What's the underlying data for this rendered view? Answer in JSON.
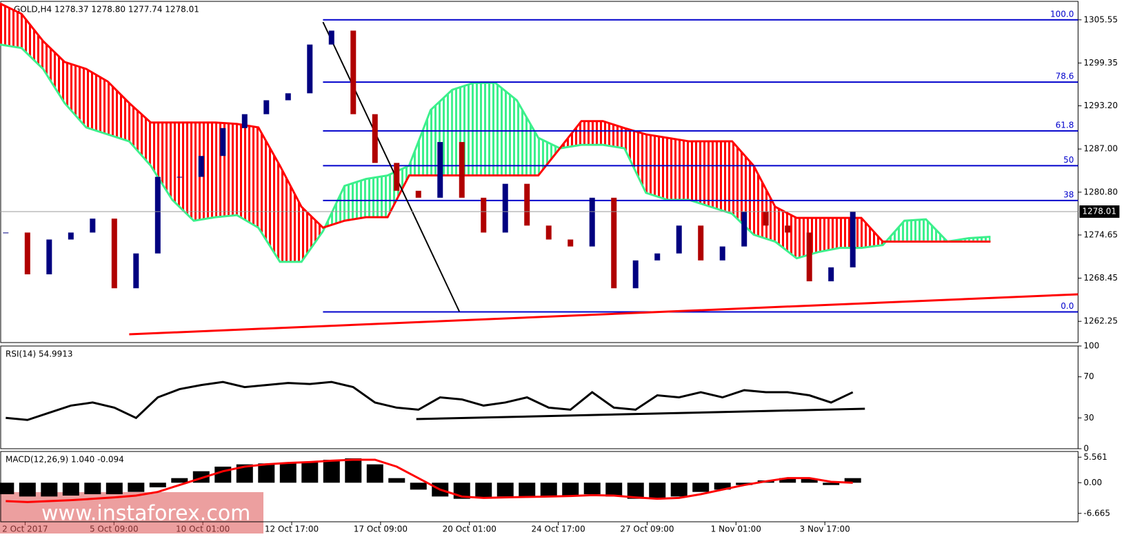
{
  "chart_data": [
    {
      "type": "candlestick",
      "title": "GOLD,H4  1278.37 1278.80 1277.74 1278.01",
      "values": [
        1275,
        1269,
        1274,
        1275,
        1277,
        1267,
        1272,
        1283,
        1283,
        1286,
        1290,
        1292,
        1294,
        1295,
        1302,
        1304,
        1292,
        1285,
        1281,
        1280,
        1288,
        1280,
        1275,
        1282,
        1276,
        1274,
        1273,
        1280,
        1267,
        1271,
        1272,
        1276,
        1271,
        1273,
        1278,
        1276,
        1275,
        1268,
        1270,
        1278
      ],
      "up_color": "#000080",
      "down_color": "#b00000",
      "cloud": {
        "span_a": [
          1302.0,
          1301.5,
          1298.5,
          1293.6,
          1290.1,
          1289.1,
          1288.1,
          1284.6,
          1279.7,
          1276.7,
          1277.2,
          1277.5,
          1275.7,
          1270.8,
          1270.8,
          1275.2,
          1281.7,
          1282.7,
          1283.2,
          1284.6,
          1292.6,
          1295.5,
          1296.5,
          1296.5,
          1294.0,
          1288.6,
          1287.1,
          1287.6,
          1287.6,
          1287.1,
          1280.7,
          1279.7,
          1279.7,
          1278.7,
          1277.7,
          1274.7,
          1273.7,
          1271.3,
          1272.2,
          1272.8,
          1272.8,
          1273.2,
          1276.7,
          1276.9,
          1273.7,
          1274.2,
          1274.4
        ],
        "span_b": [
          1307.9,
          1306.4,
          1302.5,
          1299.5,
          1298.5,
          1296.7,
          1293.6,
          1290.8,
          1290.8,
          1290.8,
          1290.8,
          1290.6,
          1290.1,
          1284.6,
          1278.7,
          1275.7,
          1276.7,
          1277.2,
          1277.2,
          1283.2,
          1283.2,
          1283.2,
          1283.2,
          1283.2,
          1283.2,
          1283.2,
          1287.1,
          1291.0,
          1291.0,
          1290.0,
          1289.1,
          1288.6,
          1288.1,
          1288.1,
          1288.1,
          1284.6,
          1278.7,
          1277.1,
          1277.1,
          1277.1,
          1277.1,
          1273.7,
          1273.7,
          1273.7,
          1273.7,
          1273.7,
          1273.7
        ],
        "color_a": "#3cf08c",
        "color_b": "#ff0000"
      },
      "fib_levels": [
        {
          "label": "100.0",
          "price": 1305.55
        },
        {
          "label": "78.6",
          "price": 1296.6
        },
        {
          "label": "61.8",
          "price": 1289.6
        },
        {
          "label": "50",
          "price": 1284.6
        },
        {
          "label": "38",
          "price": 1279.6
        },
        {
          "label": "0.0",
          "price": 1263.6
        }
      ],
      "fib_color": "#0000cc",
      "last_price": {
        "value": 1278.01,
        "label": "1278.01"
      },
      "ylim": [
        1259.2,
        1308.2
      ],
      "yticks": [
        1305.55,
        1299.35,
        {
          "value": 1293.2,
          "label": "1293.20"
        },
        {
          "value": 1287,
          "label": "1287.00"
        },
        {
          "value": 1280.8,
          "label": "1280.80"
        },
        1274.65,
        1268.45,
        1262.25
      ],
      "xtick_labels": [
        "2 Oct 2017",
        "5 Oct 09:00",
        "10 Oct 01:00",
        "12 Oct 17:00",
        "17 Oct 09:00",
        "20 Oct 01:00",
        "24 Oct 17:00",
        "27 Oct 09:00",
        "1 Nov 01:00",
        "3 Nov 17:00"
      ],
      "watermark": "www.instaforex.com"
    },
    {
      "type": "line",
      "title": "RSI(14) 54.9913",
      "color": "#000000",
      "values": [
        30,
        28,
        35,
        42,
        45,
        40,
        30,
        50,
        58,
        62,
        65,
        60,
        62,
        64,
        63,
        65,
        60,
        45,
        40,
        38,
        50,
        48,
        42,
        45,
        50,
        40,
        38,
        55,
        40,
        38,
        52,
        50,
        55,
        50,
        57,
        55,
        55,
        52,
        45,
        55
      ],
      "ylim": [
        0,
        100
      ],
      "yticks": [
        100,
        70,
        30,
        0
      ]
    },
    {
      "type": "bar",
      "title": "MACD(12,26,9) 1.040 -0.094",
      "color": "#000000",
      "signal_color": "#ff0000",
      "values": [
        -2.5,
        -3,
        -3,
        -2.8,
        -2.5,
        -2.5,
        -2,
        -1,
        1,
        2.5,
        3.5,
        4,
        4.2,
        4.3,
        4.5,
        5,
        5.3,
        4,
        1,
        -1.5,
        -3,
        -3.5,
        -3.2,
        -3,
        -3.2,
        -3,
        -2.8,
        -2.5,
        -3,
        -3.5,
        -3.5,
        -3,
        -2,
        -1.5,
        -0.5,
        0.5,
        1,
        0.8,
        -0.5,
        1
      ],
      "signal": [
        -4,
        -4.2,
        -4,
        -3.8,
        -3.5,
        -3.2,
        -2.8,
        -2,
        -0.5,
        1,
        2.5,
        3.5,
        4,
        4.3,
        4.5,
        4.8,
        5,
        5,
        3.5,
        1,
        -1.5,
        -3,
        -3.3,
        -3.2,
        -3.1,
        -3,
        -2.9,
        -2.7,
        -2.8,
        -3.2,
        -3.5,
        -3.3,
        -2.5,
        -1.5,
        -0.5,
        0.3,
        1,
        1,
        0.2,
        0
      ],
      "ylim": [
        -8.5,
        6.8
      ],
      "yticks": [
        5.561,
        {
          "value": 0,
          "label": "0.00"
        },
        -6.665
      ]
    }
  ]
}
